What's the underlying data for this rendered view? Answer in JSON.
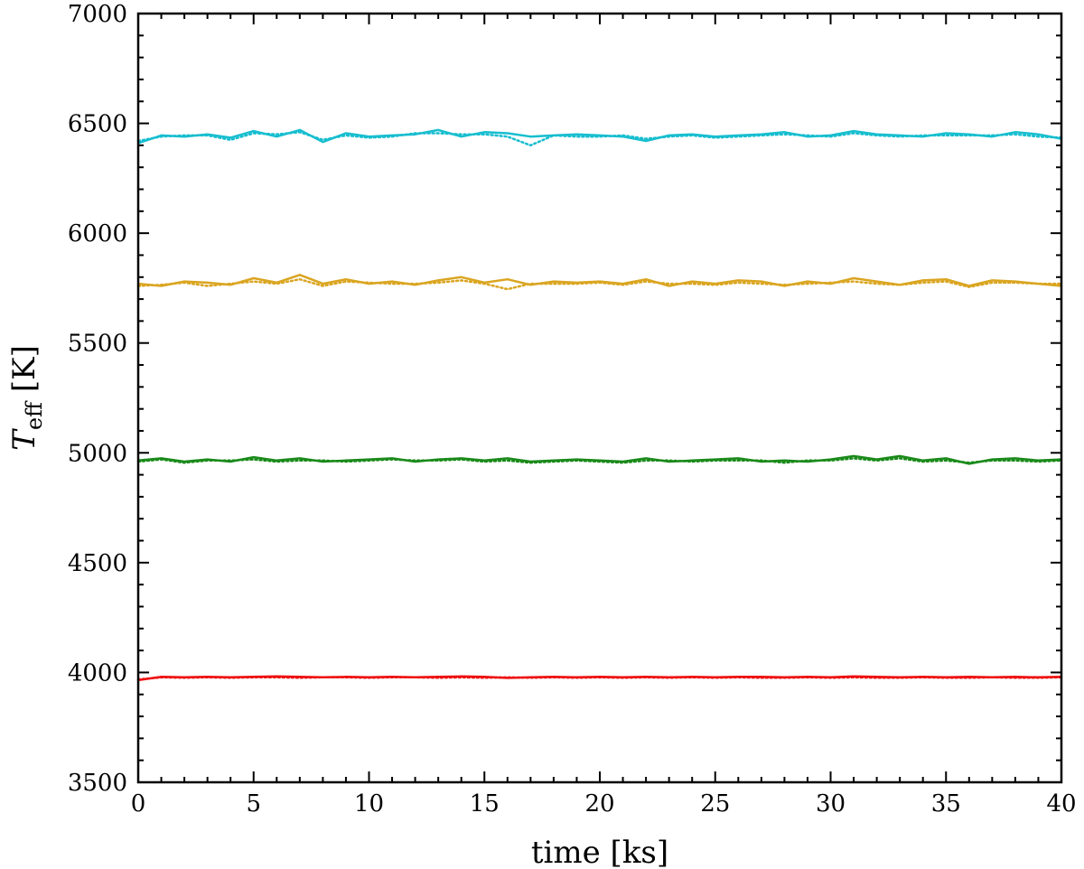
{
  "chart_data": {
    "type": "line",
    "xlabel": "time [ks]",
    "ylabel": {
      "main": "T",
      "sub": "eff",
      "unit": " [K]"
    },
    "xlim": [
      0,
      40
    ],
    "ylim": [
      3500,
      7000
    ],
    "xticks": [
      0,
      5,
      10,
      15,
      20,
      25,
      30,
      35,
      40
    ],
    "yticks": [
      3500,
      4000,
      4500,
      5000,
      5500,
      6000,
      6500,
      7000
    ],
    "x": [
      0,
      1,
      2,
      3,
      4,
      5,
      6,
      7,
      8,
      9,
      10,
      11,
      12,
      13,
      14,
      15,
      16,
      17,
      18,
      19,
      20,
      21,
      22,
      23,
      24,
      25,
      26,
      27,
      28,
      29,
      30,
      31,
      32,
      33,
      34,
      35,
      36,
      37,
      38,
      39,
      40
    ],
    "series": [
      {
        "color": "#17becf",
        "style": "solid",
        "values": [
          6410,
          6445,
          6440,
          6450,
          6435,
          6465,
          6440,
          6470,
          6415,
          6455,
          6440,
          6445,
          6450,
          6470,
          6440,
          6460,
          6455,
          6440,
          6445,
          6450,
          6445,
          6440,
          6420,
          6445,
          6450,
          6440,
          6445,
          6450,
          6460,
          6440,
          6445,
          6465,
          6450,
          6445,
          6440,
          6455,
          6450,
          6440,
          6460,
          6450,
          6430
        ]
      },
      {
        "color": "#17becf",
        "style": "dotted",
        "values": [
          6420,
          6440,
          6445,
          6445,
          6425,
          6455,
          6450,
          6460,
          6425,
          6445,
          6435,
          6440,
          6455,
          6455,
          6450,
          6450,
          6440,
          6400,
          6445,
          6440,
          6440,
          6445,
          6430,
          6440,
          6445,
          6435,
          6440,
          6445,
          6450,
          6445,
          6440,
          6455,
          6445,
          6440,
          6445,
          6445,
          6445,
          6445,
          6450,
          6440,
          6435
        ]
      },
      {
        "color": "#daa520",
        "style": "solid",
        "values": [
          5770,
          5760,
          5780,
          5775,
          5765,
          5795,
          5775,
          5810,
          5770,
          5790,
          5770,
          5780,
          5765,
          5785,
          5800,
          5775,
          5790,
          5765,
          5780,
          5775,
          5780,
          5770,
          5790,
          5760,
          5780,
          5770,
          5785,
          5780,
          5760,
          5780,
          5770,
          5795,
          5780,
          5765,
          5785,
          5790,
          5760,
          5785,
          5780,
          5770,
          5760
        ]
      },
      {
        "color": "#daa520",
        "style": "dotted",
        "values": [
          5760,
          5765,
          5775,
          5760,
          5770,
          5780,
          5770,
          5790,
          5760,
          5780,
          5775,
          5770,
          5770,
          5775,
          5785,
          5770,
          5745,
          5770,
          5770,
          5770,
          5775,
          5765,
          5780,
          5770,
          5770,
          5765,
          5775,
          5770,
          5765,
          5770,
          5775,
          5780,
          5770,
          5765,
          5775,
          5780,
          5755,
          5775,
          5775,
          5770,
          5770
        ]
      },
      {
        "color": "#1a8a1a",
        "style": "solid",
        "values": [
          4965,
          4975,
          4960,
          4970,
          4960,
          4980,
          4965,
          4975,
          4960,
          4965,
          4970,
          4975,
          4960,
          4970,
          4975,
          4965,
          4975,
          4960,
          4965,
          4970,
          4965,
          4960,
          4975,
          4960,
          4965,
          4970,
          4975,
          4960,
          4965,
          4960,
          4970,
          4985,
          4970,
          4985,
          4965,
          4975,
          4950,
          4970,
          4975,
          4965,
          4970
        ]
      },
      {
        "color": "#1a8a1a",
        "style": "dotted",
        "values": [
          4960,
          4970,
          4955,
          4965,
          4965,
          4970,
          4960,
          4965,
          4965,
          4960,
          4965,
          4970,
          4965,
          4965,
          4970,
          4960,
          4965,
          4955,
          4960,
          4965,
          4960,
          4955,
          4965,
          4965,
          4960,
          4965,
          4965,
          4965,
          4955,
          4965,
          4965,
          4975,
          4965,
          4975,
          4960,
          4965,
          4955,
          4965,
          4965,
          4960,
          4965
        ]
      },
      {
        "color": "#ee1111",
        "style": "solid",
        "values": [
          3965,
          3980,
          3978,
          3980,
          3978,
          3980,
          3982,
          3980,
          3978,
          3980,
          3978,
          3980,
          3978,
          3980,
          3982,
          3980,
          3975,
          3978,
          3980,
          3978,
          3980,
          3978,
          3980,
          3978,
          3980,
          3978,
          3980,
          3980,
          3978,
          3980,
          3978,
          3982,
          3980,
          3978,
          3980,
          3978,
          3980,
          3978,
          3980,
          3978,
          3980
        ]
      },
      {
        "color": "#ee1111",
        "style": "dotted",
        "values": [
          3968,
          3978,
          3976,
          3978,
          3976,
          3978,
          3978,
          3976,
          3978,
          3978,
          3976,
          3978,
          3978,
          3976,
          3978,
          3976,
          3978,
          3976,
          3978,
          3976,
          3978,
          3976,
          3978,
          3976,
          3978,
          3976,
          3978,
          3976,
          3976,
          3978,
          3976,
          3978,
          3976,
          3976,
          3978,
          3976,
          3976,
          3978,
          3976,
          3976,
          3978
        ]
      }
    ]
  }
}
